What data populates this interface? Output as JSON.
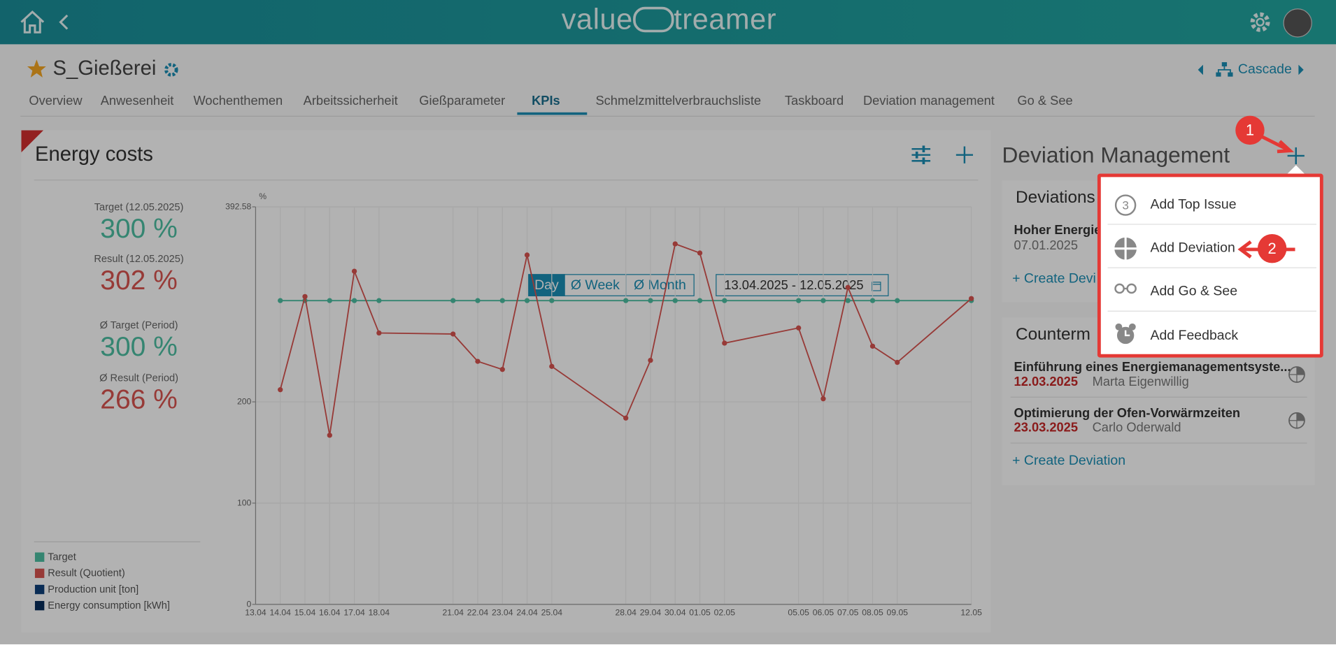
{
  "header": {
    "brand_left": "value",
    "brand_right": "treamer"
  },
  "page": {
    "title": "S_Gießerei",
    "cascade": "Cascade"
  },
  "tabs": [
    "Overview",
    "Anwesenheit",
    "Wochenthemen",
    "Arbeitssicherheit",
    "Gießparameter",
    "KPIs",
    "Schmelzmittelverbrauchsliste",
    "Taskboard",
    "Deviation management",
    "Go & See"
  ],
  "kpi": {
    "title": "Energy costs",
    "periods": [
      "Day",
      "Ø Week",
      "Ø Month"
    ],
    "date_range": "13.04.2025 - 12.05.2025",
    "stats": [
      {
        "label": "Target (12.05.2025)",
        "value": "300 %"
      },
      {
        "label": "Result (12.05.2025)",
        "value": "302 %"
      },
      {
        "label": "Ø Target (Period)",
        "value": "300 %"
      },
      {
        "label": "Ø Result (Period)",
        "value": "266 %"
      }
    ]
  },
  "chart_data": {
    "type": "line",
    "y_unit": "%",
    "x": [
      "13.04",
      "14.04",
      "15.04",
      "16.04",
      "17.04",
      "18.04",
      "21.04",
      "22.04",
      "23.04",
      "24.04",
      "25.04",
      "28.04",
      "29.04",
      "30.04",
      "01.05",
      "02.05",
      "05.05",
      "06.05",
      "07.05",
      "08.05",
      "09.05",
      "12.05"
    ],
    "series": [
      {
        "name": "Target",
        "color": "#4cbfa2",
        "values": [
          null,
          300,
          300,
          300,
          300,
          300,
          300,
          300,
          300,
          300,
          300,
          300,
          300,
          300,
          300,
          300,
          300,
          300,
          300,
          300,
          300,
          300
        ]
      },
      {
        "name": "Result (Quotient)",
        "color": "#d9534f",
        "values": [
          null,
          212,
          304,
          167,
          329,
          268,
          267,
          240,
          232,
          345,
          235,
          184,
          241,
          356,
          347,
          258,
          273,
          203,
          313,
          255,
          239,
          302
        ]
      },
      {
        "name": "Production unit [ton]",
        "color": "#0d3f7a",
        "values": [
          null,
          null,
          null,
          null,
          null,
          null,
          null,
          null,
          null,
          null,
          null,
          null,
          null,
          null,
          null,
          null,
          null,
          null,
          null,
          null,
          null,
          null
        ]
      },
      {
        "name": "Energy consumption [kWh]",
        "color": "#0a2f5c",
        "values": [
          null,
          null,
          null,
          null,
          null,
          null,
          null,
          null,
          null,
          null,
          null,
          null,
          null,
          null,
          null,
          null,
          null,
          null,
          null,
          null,
          null,
          null
        ]
      }
    ],
    "ylim": [
      0,
      392.58
    ],
    "yticks": [
      0,
      100,
      200,
      392.58
    ],
    "grid": true
  },
  "deviation_panel": {
    "title": "Deviation Management",
    "deviations": {
      "title": "Deviations",
      "items": [
        {
          "title": "Hoher Energie",
          "date": "07.01.2025"
        }
      ],
      "create": "Create Devi"
    },
    "countermeasures": {
      "title": "Counterm",
      "items": [
        {
          "title": "Einführung eines Energiemanagementsyste...",
          "date": "12.03.2025",
          "owner": "Marta Eigenwillig"
        },
        {
          "title": "Optimierung der Ofen-Vorwärmzeiten",
          "date": "23.03.2025",
          "owner": "Carlo Oderwald"
        }
      ],
      "create": "Create Deviation"
    }
  },
  "menu": [
    "Add Top Issue",
    "Add Deviation",
    "Add Go & See",
    "Add Feedback"
  ],
  "annotations": [
    "1",
    "2"
  ]
}
